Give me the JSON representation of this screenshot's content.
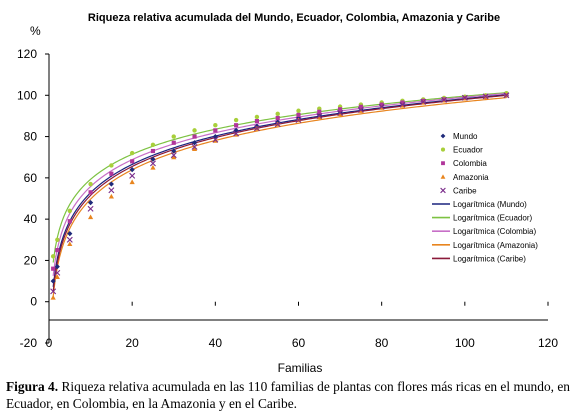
{
  "caption": {
    "label": "Figura 4.",
    "text": "Riqueza relativa acumulada en las 110 familias de plantas con flores más ricas en el mundo, en Ecuador, en Colombia, en la Amazonia y en el Caribe."
  },
  "chart_data": {
    "type": "scatter",
    "title": "Riqueza relativa acumulada del Mundo, Ecuador, Colombia, Amazonia y Caribe",
    "ylabel": "%",
    "xlabel": "Familias",
    "xlim": [
      0,
      120
    ],
    "ylim": [
      -20,
      120
    ],
    "xticks": [
      0,
      20,
      40,
      60,
      80,
      100,
      120
    ],
    "yticks": [
      -20,
      0,
      20,
      40,
      60,
      80,
      100,
      120
    ],
    "grid": false,
    "legend_position": "inside-left",
    "series": [
      {
        "name": "Mundo",
        "marker": "diamond",
        "color": "#1f2a7a",
        "x": [
          1,
          2,
          5,
          10,
          15,
          20,
          25,
          30,
          35,
          40,
          45,
          50,
          55,
          60,
          65,
          70,
          75,
          80,
          85,
          90,
          95,
          100,
          105,
          110
        ],
        "y": [
          10,
          17,
          33,
          48,
          57,
          64,
          69,
          73,
          77,
          80,
          83,
          85,
          87,
          89,
          90.5,
          92,
          93.5,
          95,
          96,
          97,
          98,
          98.8,
          99.4,
          100
        ]
      },
      {
        "name": "Ecuador",
        "marker": "circle",
        "color": "#a8cf3a",
        "x": [
          1,
          2,
          5,
          10,
          15,
          20,
          25,
          30,
          35,
          40,
          45,
          50,
          55,
          60,
          65,
          70,
          75,
          80,
          85,
          90,
          95,
          100,
          105,
          110
        ],
        "y": [
          22,
          30,
          44,
          57,
          66,
          72,
          76,
          80,
          83,
          85.5,
          88,
          89.5,
          91,
          92.5,
          93.5,
          94.5,
          95.5,
          96.5,
          97.3,
          98,
          98.7,
          99.3,
          100,
          101
        ]
      },
      {
        "name": "Colombia",
        "marker": "square",
        "color": "#b0359a",
        "x": [
          1,
          2,
          5,
          10,
          15,
          20,
          25,
          30,
          35,
          40,
          45,
          50,
          55,
          60,
          65,
          70,
          75,
          80,
          85,
          90,
          95,
          100,
          105,
          110
        ],
        "y": [
          16,
          25,
          39,
          53,
          62,
          68,
          73,
          77,
          80,
          83,
          85.5,
          87.5,
          89,
          90.5,
          92,
          93.2,
          94.4,
          95.5,
          96.5,
          97.3,
          98,
          98.7,
          99.3,
          100
        ]
      },
      {
        "name": "Amazonia",
        "marker": "triangle",
        "color": "#e8851f",
        "x": [
          1,
          2,
          5,
          10,
          15,
          20,
          25,
          30,
          35,
          40,
          45,
          50,
          55,
          60,
          65,
          70,
          75,
          80,
          85,
          90,
          95,
          100,
          105,
          110
        ],
        "y": [
          2,
          12,
          28,
          41,
          51,
          58,
          65,
          70,
          74,
          78,
          81,
          84,
          86,
          88,
          89.5,
          91,
          92.5,
          94,
          95,
          96.5,
          97.5,
          98.5,
          99.3,
          100
        ]
      },
      {
        "name": "Caribe",
        "marker": "x",
        "color": "#7a2b8a",
        "x": [
          1,
          2,
          5,
          10,
          15,
          20,
          25,
          30,
          35,
          40,
          45,
          50,
          55,
          60,
          65,
          70,
          75,
          80,
          85,
          90,
          95,
          100,
          105,
          110
        ],
        "y": [
          5,
          14,
          30,
          45,
          54,
          61,
          67,
          71,
          75,
          78.5,
          81.5,
          84,
          86,
          88,
          90,
          91.5,
          93,
          94.5,
          95.5,
          96.8,
          97.8,
          98.8,
          99.5,
          100
        ]
      }
    ],
    "trendlines": [
      {
        "name": "Logarítmica (Mundo)",
        "color": "#1a237e",
        "a": 7.2,
        "b": 19.8
      },
      {
        "name": "Logarítmica (Ecuador)",
        "color": "#7dc242",
        "a": 19.0,
        "b": 17.5
      },
      {
        "name": "Logarítmica (Colombia)",
        "color": "#c76fc7",
        "a": 12.5,
        "b": 18.8
      },
      {
        "name": "Logarítmica (Amazonia)",
        "color": "#e8851f",
        "a": 2.5,
        "b": 20.5
      },
      {
        "name": "Logarítmica (Caribe)",
        "color": "#8b1a3a",
        "a": 5.0,
        "b": 20.2
      }
    ]
  }
}
